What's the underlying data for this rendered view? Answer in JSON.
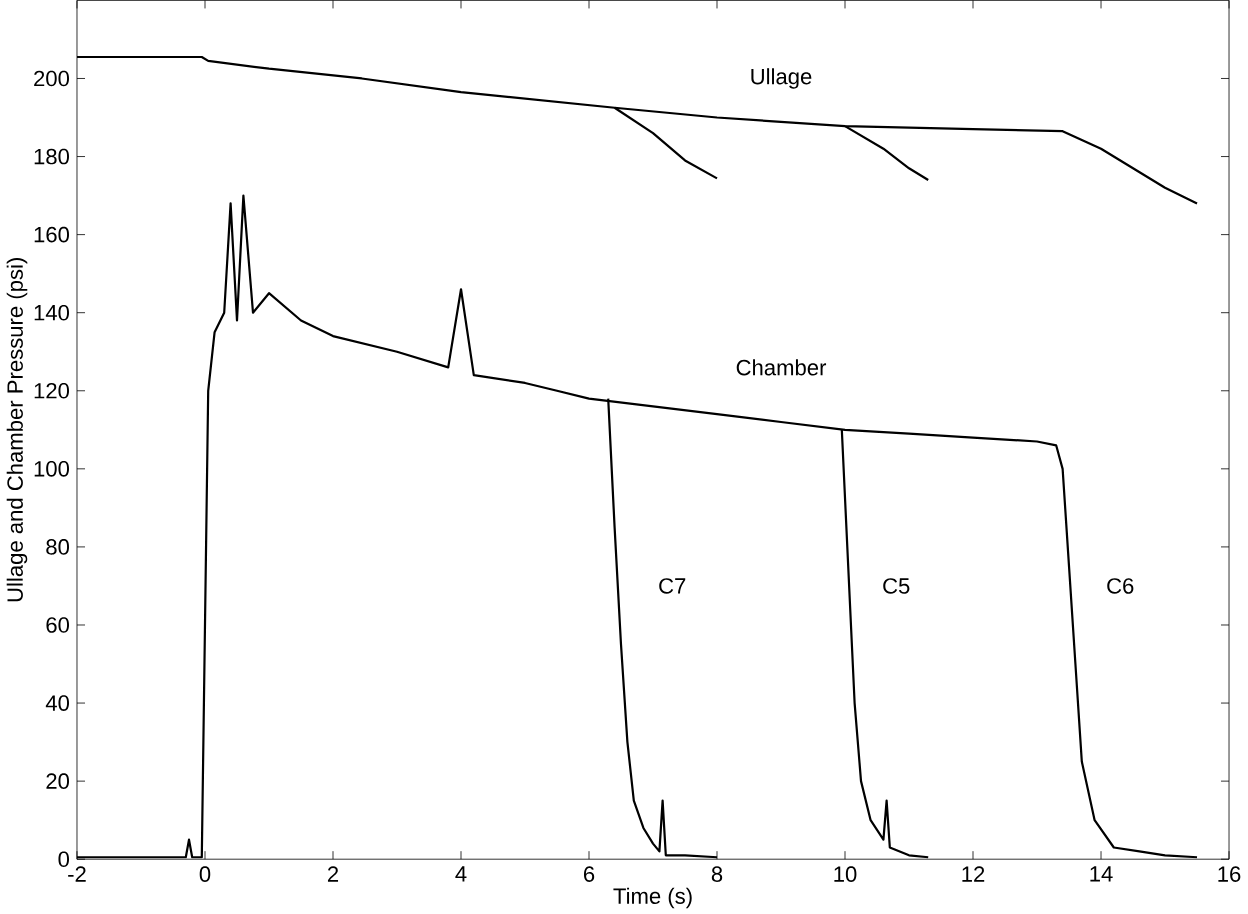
{
  "chart_data": {
    "type": "line",
    "xlabel": "Time (s)",
    "ylabel": "Ullage and Chamber Pressure (psi)",
    "xlim": [
      -2,
      16
    ],
    "ylim": [
      0,
      220
    ],
    "xticks": [
      -2,
      0,
      2,
      4,
      6,
      8,
      10,
      12,
      14,
      16
    ],
    "yticks": [
      0,
      20,
      40,
      60,
      80,
      100,
      120,
      140,
      160,
      180,
      200
    ],
    "annotations": [
      "Ullage",
      "Chamber",
      "C7",
      "C5",
      "C6"
    ],
    "series": [
      {
        "color": "#000000",
        "x": [
          -2,
          -0.05,
          0.05,
          1,
          2.45,
          4,
          6.4,
          8,
          10,
          12,
          13.4,
          14,
          15,
          15.5
        ],
        "values": [
          205.5,
          205.5,
          204.5,
          202.5,
          200,
          196.5,
          192.5,
          190,
          187.8,
          187,
          186.5,
          182,
          172,
          168
        ]
      },
      {
        "color": "#000000",
        "x": [
          6.4,
          7,
          7.5,
          8
        ],
        "values": [
          192.5,
          186,
          179,
          174.4
        ]
      },
      {
        "color": "#000000",
        "x": [
          10,
          10.6,
          11,
          11.3
        ],
        "values": [
          187.8,
          182,
          177,
          174
        ]
      },
      {
        "color": "#000000",
        "x": [
          -2,
          -0.3,
          -0.25,
          -0.2,
          -0.05,
          0.05,
          0.15,
          0.3,
          0.4,
          0.5,
          0.6,
          0.75,
          1,
          1.5,
          2,
          3,
          3.8,
          4,
          4.2,
          5,
          5.5,
          6,
          7,
          8,
          9,
          10,
          11,
          12,
          13,
          13.3,
          13.4,
          13.5,
          13.6,
          13.7,
          13.9,
          14.2,
          14.6,
          15,
          15.5
        ],
        "values": [
          0.5,
          0.5,
          5,
          0.5,
          0.5,
          120,
          135,
          140,
          168,
          138,
          170,
          140,
          145,
          138,
          134,
          130,
          126,
          146,
          124,
          122,
          120,
          118,
          116,
          114,
          112,
          110,
          109,
          108,
          107,
          106,
          100,
          75,
          50,
          25,
          10,
          3,
          2,
          1,
          0.5
        ]
      },
      {
        "color": "#000000",
        "x": [
          6.3,
          6.4,
          6.5,
          6.6,
          6.7,
          6.85,
          7,
          7.1,
          7.15,
          7.2,
          7.5,
          8
        ],
        "values": [
          118,
          85,
          55,
          30,
          15,
          8,
          4,
          2,
          15,
          1,
          1,
          0.5
        ]
      },
      {
        "color": "#000000",
        "x": [
          9.95,
          10.05,
          10.15,
          10.25,
          10.4,
          10.6,
          10.65,
          10.7,
          11,
          11.3
        ],
        "values": [
          110,
          75,
          40,
          20,
          10,
          5,
          15,
          3,
          1,
          0.5
        ]
      }
    ]
  }
}
